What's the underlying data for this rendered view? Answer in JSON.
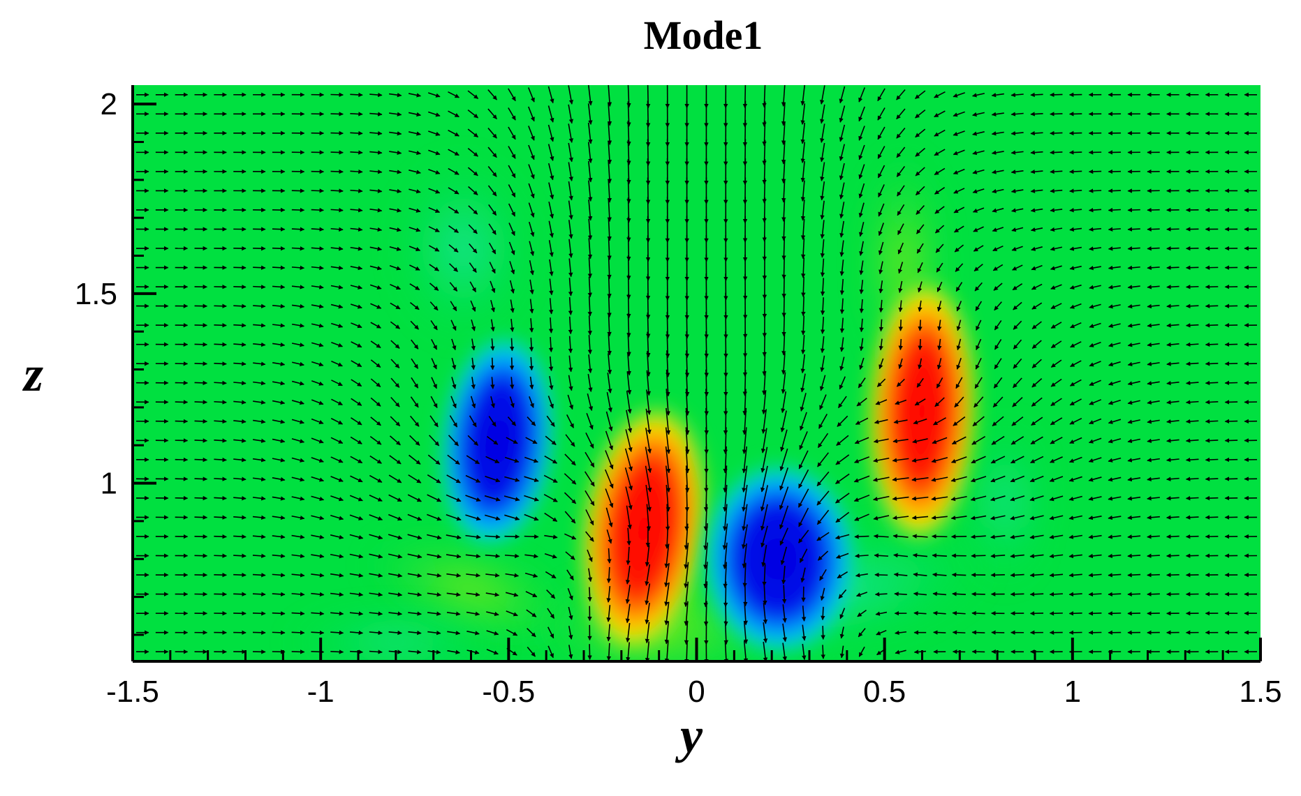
{
  "chart_data": {
    "type": "heatmap",
    "title": "Mode1",
    "xlabel": "y",
    "ylabel": "z",
    "xlim": [
      -1.5,
      1.5
    ],
    "ylim": [
      0.53,
      2.05
    ],
    "x_ticks": [
      "-1.5",
      "-1",
      "-0.5",
      "0",
      "0.5",
      "1",
      "1.5"
    ],
    "x_tick_values": [
      -1.5,
      -1,
      -0.5,
      0,
      0.5,
      1,
      1.5
    ],
    "y_ticks": [
      "1",
      "1.5",
      "2"
    ],
    "y_tick_values": [
      1,
      1.5,
      2
    ],
    "grid": false,
    "colormap": [
      "#0000d8",
      "#00c8ff",
      "#00e040",
      "#ffff00",
      "#ff0000"
    ],
    "background_color": "#00e040",
    "vector_field": true,
    "field_extrema": [
      {
        "sign": "negative",
        "y": -0.53,
        "z": 1.11
      },
      {
        "sign": "positive",
        "y": -0.14,
        "z": 0.88
      },
      {
        "sign": "negative",
        "y": 0.22,
        "z": 0.8
      },
      {
        "sign": "positive",
        "y": 0.6,
        "z": 1.19
      }
    ]
  }
}
